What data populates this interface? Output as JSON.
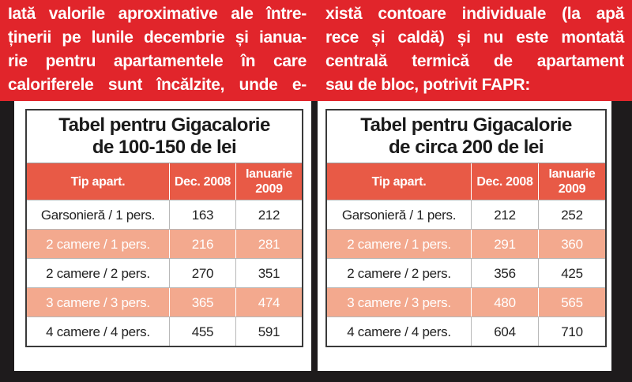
{
  "intro": {
    "left_lines": [
      "Iată valorile aproximative ale între-",
      "ținerii pe lunile decembrie și ianua-",
      "rie pentru apartamentele în care",
      "caloriferele sunt încălzite, unde e-"
    ],
    "right_lines": [
      "xistă contoare individuale (la apă",
      "rece și caldă) și nu este montată",
      "centrală termică de apartament",
      "sau de bloc, potrivit FAPR:"
    ]
  },
  "tables": [
    {
      "title_line1": "Tabel pentru Gigacalorie",
      "title_line2": "de 100-150 de lei",
      "headers": {
        "type": "Tip apart.",
        "dec": "Dec. 2008",
        "jan_line1": "Ianuarie",
        "jan_line2": "2009"
      },
      "rows": [
        {
          "type": "Garsonieră / 1 pers.",
          "dec": "163",
          "jan": "212"
        },
        {
          "type": "2 camere / 1 pers.",
          "dec": "216",
          "jan": "281"
        },
        {
          "type": "2 camere / 2 pers.",
          "dec": "270",
          "jan": "351"
        },
        {
          "type": "3 camere / 3 pers.",
          "dec": "365",
          "jan": "474"
        },
        {
          "type": "4 camere / 4 pers.",
          "dec": "455",
          "jan": "591"
        }
      ]
    },
    {
      "title_line1": "Tabel pentru Gigacalorie",
      "title_line2": "de circa 200 de lei",
      "headers": {
        "type": "Tip apart.",
        "dec": "Dec. 2008",
        "jan_line1": "Ianuarie",
        "jan_line2": "2009"
      },
      "rows": [
        {
          "type": "Garsonieră / 1 pers.",
          "dec": "212",
          "jan": "252"
        },
        {
          "type": "2 camere / 1 pers.",
          "dec": "291",
          "jan": "360"
        },
        {
          "type": "2 camere / 2 pers.",
          "dec": "356",
          "jan": "425"
        },
        {
          "type": "3 camere / 3 pers.",
          "dec": "480",
          "jan": "565"
        },
        {
          "type": "4 camere / 4 pers.",
          "dec": "604",
          "jan": "710"
        }
      ]
    }
  ],
  "colors": {
    "banner_red": "#e1252b",
    "header_row": "#e85a46",
    "highlight_row": "#f3a98e",
    "background_dark": "#1e1b1c"
  }
}
